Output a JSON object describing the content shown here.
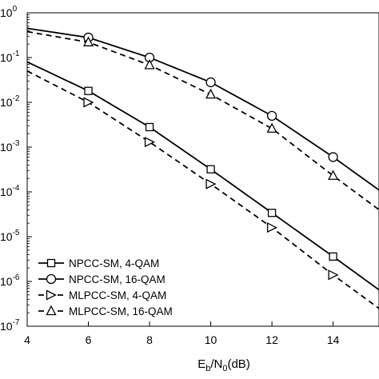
{
  "chart_data": {
    "type": "line",
    "title": "",
    "xlabel": {
      "main": "E",
      "sub1": "b",
      "mid": "/N",
      "sub2": "0",
      "tail": "(dB)"
    },
    "ylabel": "",
    "xlim": [
      4,
      15.5
    ],
    "ylim_log10": [
      -7,
      0
    ],
    "yscale": "log",
    "grid": false,
    "legend_position": "bottom-left",
    "x_ticks": [
      4,
      6,
      8,
      10,
      12,
      14
    ],
    "x_tick_labels": [
      "4",
      "6",
      "8",
      "10",
      "12",
      "14"
    ],
    "y_ticks_exp": [
      0,
      -1,
      -2,
      -3,
      -4,
      -5,
      -6,
      -7
    ],
    "y_tick_labels": [
      {
        "base": "10",
        "exp": "0"
      },
      {
        "base": "10",
        "exp": "-1"
      },
      {
        "base": "10",
        "exp": "-2"
      },
      {
        "base": "10",
        "exp": "-3"
      },
      {
        "base": "10",
        "exp": "-4"
      },
      {
        "base": "10",
        "exp": "-5"
      },
      {
        "base": "10",
        "exp": "-6"
      },
      {
        "base": "10",
        "exp": "-7"
      }
    ],
    "series": [
      {
        "name": "NPCC-SM, 4-QAM",
        "line_style": "solid",
        "marker": "square",
        "x": [
          4,
          6,
          8,
          10,
          12,
          14,
          15.5
        ],
        "y": [
          0.08,
          0.018,
          0.0028,
          0.00032,
          3.4e-05,
          3.6e-06,
          6.5e-07
        ],
        "marker_x": [
          6,
          8,
          10,
          12,
          14
        ]
      },
      {
        "name": "NPCC-SM, 16-QAM",
        "line_style": "solid",
        "marker": "circle",
        "x": [
          4,
          6,
          8,
          10,
          12,
          14,
          15.5
        ],
        "y": [
          0.45,
          0.28,
          0.1,
          0.028,
          0.005,
          0.0006,
          0.00011
        ],
        "marker_x": [
          6,
          8,
          10,
          12,
          14
        ]
      },
      {
        "name": "MLPCC-SM, 4-QAM",
        "line_style": "dashed",
        "marker": "triangle-right",
        "x": [
          4,
          6,
          8,
          10,
          12,
          14,
          15.5
        ],
        "y": [
          0.05,
          0.01,
          0.0013,
          0.00015,
          1.6e-05,
          1.4e-06,
          2.5e-07
        ],
        "marker_x": [
          6,
          8,
          10,
          12,
          14
        ]
      },
      {
        "name": "MLPCC-SM, 16-QAM",
        "line_style": "dashed",
        "marker": "triangle-up",
        "x": [
          4,
          6,
          8,
          10,
          12,
          14,
          15.5
        ],
        "y": [
          0.38,
          0.22,
          0.068,
          0.015,
          0.0026,
          0.00023,
          4e-05
        ],
        "marker_x": [
          6,
          8,
          10,
          12,
          14
        ]
      }
    ]
  }
}
